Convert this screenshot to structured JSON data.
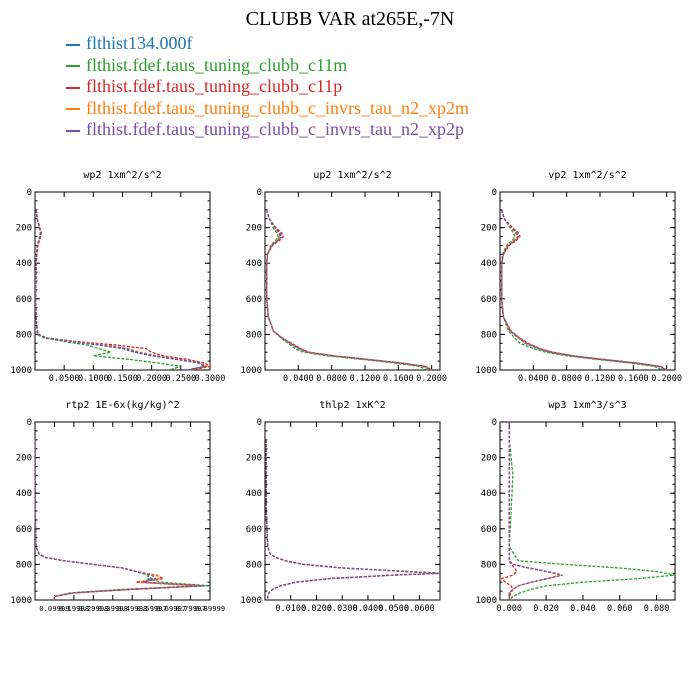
{
  "title": "CLUBB VAR at265E,-7N",
  "legend": [
    {
      "label": "flthist134.000f",
      "color": "#1f77b4"
    },
    {
      "label": "flthist.fdef.taus_tuning_clubb_c11m",
      "color": "#2ca02c"
    },
    {
      "label": "flthist.fdef.taus_tuning_clubb_c11p",
      "color": "#d62728"
    },
    {
      "label": "flthist.fdef.taus_tuning_clubb_c_invrs_tau_n2_xp2m",
      "color": "#ff7f0e"
    },
    {
      "label": "flthist.fdef.taus_tuning_clubb_c_invrs_tau_n2_xp2p",
      "color": "#7b4ea3"
    }
  ],
  "chart_data": [
    {
      "type": "line",
      "title": "wp2  1xm^2/s^2",
      "ylim": [
        1000,
        0
      ],
      "yticks": [
        "0",
        "200",
        "400",
        "600",
        "800",
        "1000"
      ],
      "xlim": [
        0,
        0.3
      ],
      "xticks": [
        0.05,
        0.1,
        0.15,
        0.2,
        0.25,
        0.3
      ],
      "xticklabels": [
        "0.0500",
        "0.1000",
        "0.1500",
        "0.2000",
        "0.2500",
        "0.3000"
      ],
      "y": [
        100,
        150,
        200,
        230,
        260,
        300,
        400,
        600,
        700,
        750,
        800,
        820,
        840,
        860,
        880,
        900,
        920,
        940,
        960,
        980,
        1000
      ],
      "series": [
        {
          "values": [
            0.002,
            0.004,
            0.008,
            0.01,
            0.008,
            0.004,
            0.002,
            0.001,
            0.002,
            0.003,
            0.005,
            0.02,
            0.06,
            0.11,
            0.15,
            0.17,
            0.2,
            0.24,
            0.28,
            0.29,
            0.26
          ]
        },
        {
          "values": [
            0.002,
            0.004,
            0.007,
            0.009,
            0.007,
            0.004,
            0.002,
            0.001,
            0.002,
            0.003,
            0.004,
            0.015,
            0.05,
            0.09,
            0.11,
            0.13,
            0.1,
            0.16,
            0.21,
            0.25,
            0.23
          ]
        },
        {
          "values": [
            0.002,
            0.004,
            0.008,
            0.011,
            0.009,
            0.005,
            0.002,
            0.001,
            0.002,
            0.003,
            0.005,
            0.022,
            0.07,
            0.14,
            0.19,
            0.2,
            0.22,
            0.26,
            0.29,
            0.3,
            0.27
          ]
        },
        {
          "values": [
            0.002,
            0.004,
            0.008,
            0.01,
            0.008,
            0.004,
            0.002,
            0.001,
            0.002,
            0.003,
            0.005,
            0.02,
            0.065,
            0.12,
            0.16,
            0.18,
            0.21,
            0.25,
            0.285,
            0.295,
            0.265
          ]
        },
        {
          "values": [
            0.002,
            0.004,
            0.008,
            0.01,
            0.008,
            0.004,
            0.002,
            0.001,
            0.002,
            0.003,
            0.005,
            0.02,
            0.062,
            0.115,
            0.155,
            0.175,
            0.205,
            0.245,
            0.282,
            0.292,
            0.262
          ]
        }
      ]
    },
    {
      "type": "line",
      "title": "up2  1xm^2/s^2",
      "ylim": [
        1000,
        0
      ],
      "yticks": [
        "0",
        "200",
        "400",
        "600",
        "800",
        "1000"
      ],
      "xlim": [
        0,
        0.21
      ],
      "xticks": [
        0.04,
        0.08,
        0.12,
        0.16,
        0.2
      ],
      "xticklabels": [
        "0.0400",
        "0.0800",
        "0.1200",
        "0.1600",
        "0.2000"
      ],
      "y": [
        100,
        150,
        200,
        230,
        250,
        270,
        300,
        350,
        400,
        600,
        700,
        780,
        820,
        850,
        880,
        900,
        920,
        940,
        960,
        980,
        1000
      ],
      "series": [
        {
          "values": [
            0.002,
            0.005,
            0.012,
            0.018,
            0.02,
            0.016,
            0.008,
            0.003,
            0.002,
            0.002,
            0.004,
            0.01,
            0.02,
            0.03,
            0.04,
            0.05,
            0.08,
            0.12,
            0.16,
            0.19,
            0.2
          ]
        },
        {
          "values": [
            0.002,
            0.005,
            0.01,
            0.014,
            0.016,
            0.013,
            0.007,
            0.003,
            0.002,
            0.002,
            0.004,
            0.01,
            0.019,
            0.028,
            0.036,
            0.046,
            0.075,
            0.115,
            0.155,
            0.185,
            0.195
          ]
        },
        {
          "values": [
            0.002,
            0.005,
            0.013,
            0.02,
            0.022,
            0.018,
            0.009,
            0.003,
            0.002,
            0.002,
            0.004,
            0.01,
            0.021,
            0.032,
            0.043,
            0.053,
            0.083,
            0.123,
            0.163,
            0.193,
            0.2
          ]
        },
        {
          "values": [
            0.002,
            0.005,
            0.012,
            0.016,
            0.018,
            0.015,
            0.008,
            0.003,
            0.002,
            0.002,
            0.004,
            0.01,
            0.02,
            0.03,
            0.041,
            0.051,
            0.081,
            0.121,
            0.161,
            0.191,
            0.2
          ]
        },
        {
          "values": [
            0.002,
            0.005,
            0.012,
            0.017,
            0.019,
            0.016,
            0.008,
            0.003,
            0.002,
            0.002,
            0.004,
            0.01,
            0.02,
            0.031,
            0.042,
            0.052,
            0.082,
            0.122,
            0.162,
            0.192,
            0.2
          ]
        }
      ]
    },
    {
      "type": "line",
      "title": "vp2  1xm^2/s^2",
      "ylim": [
        1000,
        0
      ],
      "yticks": [
        "0",
        "200",
        "400",
        "600",
        "800",
        "1000"
      ],
      "xlim": [
        0,
        0.21
      ],
      "xticks": [
        0.04,
        0.08,
        0.12,
        0.16,
        0.2
      ],
      "xticklabels": [
        "0.0400",
        "0.0800",
        "0.1200",
        "0.1600",
        "0.2000"
      ],
      "y": [
        100,
        150,
        200,
        230,
        250,
        270,
        300,
        350,
        400,
        600,
        700,
        780,
        820,
        850,
        880,
        900,
        920,
        940,
        960,
        980,
        1000
      ],
      "series": [
        {
          "values": [
            0.002,
            0.005,
            0.014,
            0.02,
            0.022,
            0.018,
            0.01,
            0.004,
            0.002,
            0.002,
            0.004,
            0.012,
            0.022,
            0.03,
            0.045,
            0.06,
            0.085,
            0.12,
            0.16,
            0.19,
            0.2
          ]
        },
        {
          "values": [
            0.002,
            0.005,
            0.012,
            0.016,
            0.018,
            0.015,
            0.008,
            0.003,
            0.002,
            0.002,
            0.004,
            0.01,
            0.018,
            0.024,
            0.04,
            0.055,
            0.08,
            0.115,
            0.155,
            0.185,
            0.195
          ]
        },
        {
          "values": [
            0.002,
            0.005,
            0.015,
            0.022,
            0.024,
            0.02,
            0.011,
            0.004,
            0.002,
            0.002,
            0.004,
            0.013,
            0.024,
            0.034,
            0.048,
            0.063,
            0.088,
            0.123,
            0.163,
            0.193,
            0.2
          ]
        },
        {
          "values": [
            0.002,
            0.005,
            0.013,
            0.019,
            0.021,
            0.017,
            0.009,
            0.004,
            0.002,
            0.002,
            0.004,
            0.012,
            0.022,
            0.031,
            0.046,
            0.061,
            0.086,
            0.121,
            0.161,
            0.191,
            0.2
          ]
        },
        {
          "values": [
            0.002,
            0.005,
            0.014,
            0.02,
            0.022,
            0.018,
            0.01,
            0.004,
            0.002,
            0.002,
            0.004,
            0.012,
            0.023,
            0.032,
            0.047,
            0.062,
            0.087,
            0.122,
            0.162,
            0.192,
            0.2
          ]
        }
      ]
    },
    {
      "type": "line",
      "title": "rtp2  1E-6x(kg/kg)^2",
      "ylim": [
        1000,
        0
      ],
      "yticks": [
        "0",
        "200",
        "400",
        "600",
        "800",
        "1000"
      ],
      "xlim": [
        0,
        0.9
      ],
      "xticks": [
        0.1,
        0.2,
        0.3,
        0.4,
        0.5,
        0.6,
        0.7,
        0.8,
        0.9
      ],
      "xticklabels": [
        "0.09999",
        "0.19998",
        "0.29998",
        "0.39998",
        "0.49998",
        "0.59997",
        "0.69997",
        "0.79997",
        "0.89999"
      ],
      "y": [
        100,
        300,
        500,
        700,
        740,
        760,
        780,
        800,
        820,
        840,
        860,
        880,
        900,
        920,
        940,
        960,
        980,
        1000
      ],
      "series": [
        {
          "values": [
            0.001,
            0.001,
            0.001,
            0.005,
            0.02,
            0.05,
            0.15,
            0.3,
            0.45,
            0.52,
            0.58,
            0.6,
            0.55,
            0.86,
            0.5,
            0.2,
            0.1,
            0.1
          ]
        },
        {
          "values": [
            0.001,
            0.001,
            0.001,
            0.005,
            0.02,
            0.05,
            0.15,
            0.3,
            0.45,
            0.52,
            0.58,
            0.58,
            0.65,
            0.9,
            0.45,
            0.18,
            0.1,
            0.1
          ]
        },
        {
          "values": [
            0.001,
            0.001,
            0.001,
            0.005,
            0.02,
            0.05,
            0.15,
            0.3,
            0.45,
            0.52,
            0.62,
            0.66,
            0.52,
            0.84,
            0.5,
            0.2,
            0.1,
            0.1
          ]
        },
        {
          "values": [
            0.001,
            0.001,
            0.001,
            0.005,
            0.02,
            0.05,
            0.15,
            0.3,
            0.45,
            0.52,
            0.63,
            0.64,
            0.55,
            0.86,
            0.5,
            0.2,
            0.1,
            0.1
          ]
        },
        {
          "values": [
            0.001,
            0.001,
            0.001,
            0.005,
            0.02,
            0.05,
            0.15,
            0.3,
            0.45,
            0.52,
            0.6,
            0.62,
            0.56,
            0.87,
            0.5,
            0.2,
            0.1,
            0.1
          ]
        }
      ]
    },
    {
      "type": "line",
      "title": "thlp2  1xK^2",
      "ylim": [
        1000,
        0
      ],
      "yticks": [
        "0",
        "200",
        "400",
        "600",
        "800",
        "1000"
      ],
      "xlim": [
        0,
        0.068
      ],
      "xticks": [
        0.01,
        0.02,
        0.03,
        0.04,
        0.05,
        0.06
      ],
      "xticklabels": [
        "0.0100",
        "0.0200",
        "0.0300",
        "0.0400",
        "0.0500",
        "0.0600"
      ],
      "y": [
        100,
        300,
        500,
        700,
        740,
        760,
        780,
        800,
        820,
        840,
        850,
        860,
        880,
        900,
        920,
        940,
        960,
        980,
        1000
      ],
      "series": [
        {
          "values": [
            0.0005,
            0.0005,
            0.0005,
            0.001,
            0.002,
            0.004,
            0.008,
            0.015,
            0.03,
            0.055,
            0.068,
            0.05,
            0.025,
            0.012,
            0.006,
            0.003,
            0.0015,
            0.001,
            0.001
          ]
        },
        {
          "values": [
            0.0005,
            0.0005,
            0.0005,
            0.001,
            0.002,
            0.004,
            0.008,
            0.015,
            0.03,
            0.055,
            0.068,
            0.05,
            0.025,
            0.012,
            0.006,
            0.003,
            0.0015,
            0.001,
            0.001
          ]
        },
        {
          "values": [
            0.0005,
            0.0005,
            0.0005,
            0.001,
            0.002,
            0.004,
            0.008,
            0.015,
            0.03,
            0.055,
            0.068,
            0.05,
            0.025,
            0.012,
            0.006,
            0.003,
            0.0015,
            0.001,
            0.001
          ]
        },
        {
          "values": [
            0.0005,
            0.0005,
            0.0005,
            0.001,
            0.002,
            0.004,
            0.008,
            0.015,
            0.03,
            0.055,
            0.068,
            0.05,
            0.025,
            0.012,
            0.006,
            0.003,
            0.0015,
            0.001,
            0.001
          ]
        },
        {
          "values": [
            0.0005,
            0.0005,
            0.0005,
            0.001,
            0.002,
            0.004,
            0.008,
            0.015,
            0.03,
            0.055,
            0.068,
            0.05,
            0.025,
            0.012,
            0.006,
            0.003,
            0.0015,
            0.001,
            0.001
          ]
        }
      ]
    },
    {
      "type": "line",
      "title": "wp3  1xm^3/s^3",
      "ylim": [
        1000,
        0
      ],
      "yticks": [
        "0",
        "200",
        "400",
        "600",
        "800",
        "1000"
      ],
      "xlim": [
        -0.005,
        0.09
      ],
      "xticks": [
        0,
        0.02,
        0.04,
        0.06,
        0.08
      ],
      "xticklabels": [
        "0.000",
        "0.020",
        "0.040",
        "0.060",
        "0.080"
      ],
      "y": [
        0,
        100,
        200,
        300,
        500,
        700,
        780,
        800,
        820,
        840,
        860,
        880,
        900,
        920,
        940,
        960,
        980,
        1000
      ],
      "series": [
        {
          "values": [
            0,
            0,
            0,
            0,
            0,
            0,
            0,
            0.002,
            0.01,
            0.02,
            0.028,
            0.02,
            0.012,
            0.005,
            0.002,
            0,
            0,
            0
          ]
        },
        {
          "values": [
            0,
            0,
            0.001,
            0.002,
            0.001,
            0,
            0.005,
            0.03,
            0.06,
            0.08,
            0.09,
            0.07,
            0.04,
            0.02,
            0.012,
            0.006,
            0.002,
            0
          ]
        },
        {
          "values": [
            0,
            0,
            0,
            0,
            0,
            0,
            0,
            0.001,
            0.003,
            0.004,
            0.002,
            -0.004,
            -0.002,
            0.001,
            0.002,
            0.001,
            0,
            0
          ]
        },
        {
          "values": [
            0,
            0,
            0,
            0,
            0,
            0,
            0,
            0.002,
            0.01,
            0.02,
            0.028,
            0.02,
            0.012,
            0.005,
            0.002,
            0,
            0,
            0
          ]
        },
        {
          "values": [
            0,
            0,
            0,
            0,
            0,
            0,
            0,
            0.002,
            0.011,
            0.021,
            0.029,
            0.021,
            0.012,
            0.005,
            0.002,
            0,
            0,
            0
          ]
        }
      ]
    }
  ]
}
